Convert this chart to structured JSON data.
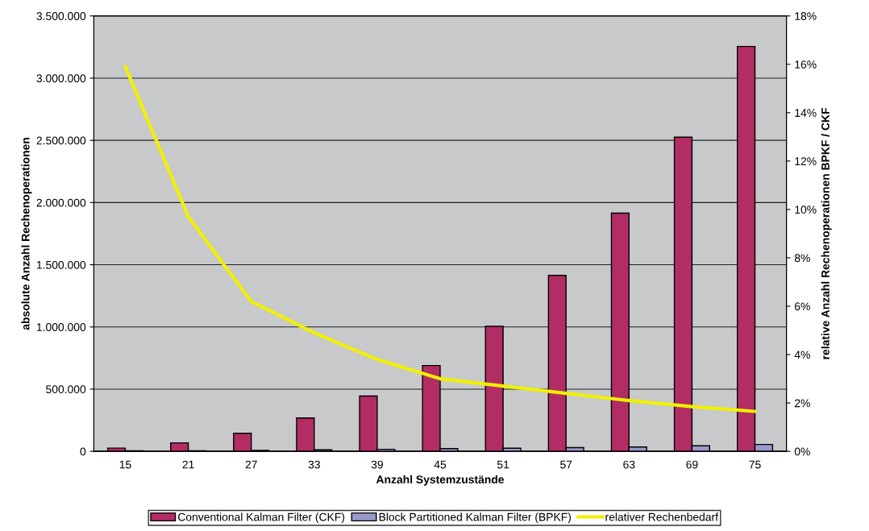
{
  "chart_data": {
    "type": "bar",
    "xlabel": "Anzahl Systemzustände",
    "ylabel": "absolute Anzahl Rechenoperationen",
    "y2label": "relative Anzahl Rechenoperationen BPKF / CKF",
    "categories": [
      "15",
      "21",
      "27",
      "33",
      "39",
      "45",
      "51",
      "57",
      "63",
      "69",
      "75"
    ],
    "series": [
      {
        "name": "Conventional Kalman Filter (CKF)",
        "color": "#b22d64",
        "values": [
          26000,
          68000,
          145000,
          268000,
          445000,
          690000,
          1005000,
          1415000,
          1915000,
          2525000,
          3255000
        ]
      },
      {
        "name": "Block Partitioned Kalman Filter (BPKF)",
        "color": "#9999cc",
        "values": [
          4000,
          5000,
          7000,
          12000,
          16000,
          22000,
          25000,
          30000,
          35000,
          45000,
          55000
        ]
      },
      {
        "name": "relativer Rechenbedarf",
        "type": "line",
        "axis": "y2",
        "color": "#f0f000",
        "values": [
          15.9,
          9.7,
          6.2,
          4.9,
          3.8,
          3.0,
          2.7,
          2.4,
          2.1,
          1.85,
          1.65
        ]
      }
    ],
    "ylim": [
      0,
      3500000
    ],
    "yticks": [
      {
        "value": 0,
        "label": "0"
      },
      {
        "value": 500000,
        "label": "500.000"
      },
      {
        "value": 1000000,
        "label": "1.000.000"
      },
      {
        "value": 1500000,
        "label": "1.500.000"
      },
      {
        "value": 2000000,
        "label": "2.000.000"
      },
      {
        "value": 2500000,
        "label": "2.500.000"
      },
      {
        "value": 3000000,
        "label": "3.000.000"
      },
      {
        "value": 3500000,
        "label": "3.500.000"
      }
    ],
    "y2lim": [
      0,
      18
    ],
    "y2ticks": [
      {
        "value": 0,
        "label": "0%"
      },
      {
        "value": 2,
        "label": "2%"
      },
      {
        "value": 4,
        "label": "4%"
      },
      {
        "value": 6,
        "label": "6%"
      },
      {
        "value": 8,
        "label": "8%"
      },
      {
        "value": 10,
        "label": "10%"
      },
      {
        "value": 12,
        "label": "12%"
      },
      {
        "value": 14,
        "label": "14%"
      },
      {
        "value": 16,
        "label": "16%"
      },
      {
        "value": 18,
        "label": "18%"
      }
    ],
    "grid": true,
    "legend": "bottom",
    "marker": "none",
    "line_style": "solid"
  }
}
